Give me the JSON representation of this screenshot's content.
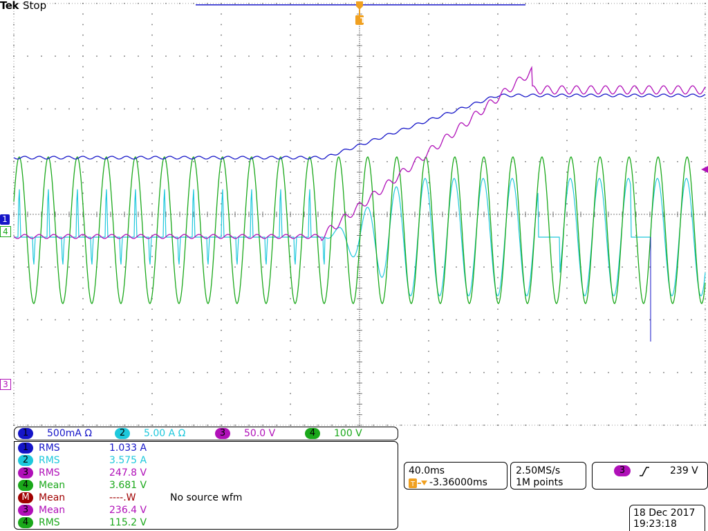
{
  "header": {
    "brand": "Tek",
    "state": "Stop"
  },
  "trigger_marker": "T",
  "channel_markers": {
    "ch1": "1",
    "ch4": "4",
    "ch3": "3"
  },
  "channels": [
    {
      "num": "1",
      "label": "500mA Ω",
      "color": "#1515c8"
    },
    {
      "num": "2",
      "label": "5.00 A  Ω",
      "color": "#1ec8dc"
    },
    {
      "num": "3",
      "label": "50.0 V",
      "color": "#b010b8"
    },
    {
      "num": "4",
      "label": "100 V",
      "color": "#1aa81a"
    }
  ],
  "measurements": [
    {
      "num": "1",
      "type": "RMS",
      "value": "1.033 A",
      "note": "",
      "color": "#1515c8"
    },
    {
      "num": "2",
      "type": "RMS",
      "value": "3.575 A",
      "note": "",
      "color": "#1ec8dc"
    },
    {
      "num": "3",
      "type": "RMS",
      "value": "247.8 V",
      "note": "",
      "color": "#b010b8"
    },
    {
      "num": "4",
      "type": "Mean",
      "value": "3.681 V",
      "note": "",
      "color": "#1aa81a"
    },
    {
      "num": "M",
      "type": "Mean",
      "value": "----.W",
      "note": "No source wfm",
      "color": "#a00000"
    },
    {
      "num": "3",
      "type": "Mean",
      "value": "236.4 V",
      "note": "",
      "color": "#b010b8"
    },
    {
      "num": "4",
      "type": "RMS",
      "value": "115.2 V",
      "note": "",
      "color": "#1aa81a"
    }
  ],
  "timebase": {
    "scale": "40.0ms",
    "position": "-3.36000ms"
  },
  "acquisition": {
    "rate": "2.50MS/s",
    "length": "1M points"
  },
  "trigger": {
    "source": "3",
    "slope_icon": "rising-edge-icon",
    "level": "239 V"
  },
  "datetime": {
    "date": "18 Dec  2017",
    "time": "19:23:18"
  },
  "colors": {
    "ch1": "#1515c8",
    "ch2": "#1ec8dc",
    "ch3": "#b010b8",
    "ch4": "#1aa81a",
    "trigger": "#f0a020",
    "math": "#a00000"
  }
}
